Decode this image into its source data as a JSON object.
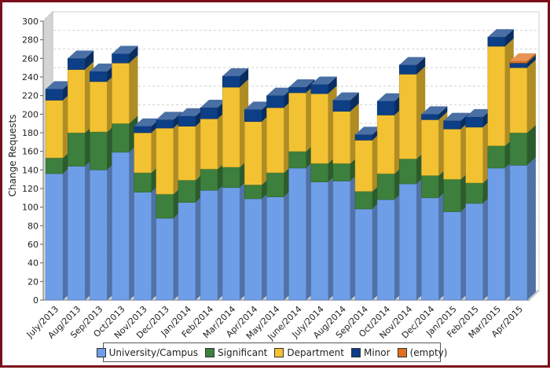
{
  "chart_data": {
    "type": "bar",
    "stacked": true,
    "ylabel": "Change Requests",
    "xlabel": "",
    "ylim": [
      0,
      300
    ],
    "yticks": [
      0,
      20,
      40,
      60,
      80,
      100,
      120,
      140,
      160,
      180,
      200,
      220,
      240,
      260,
      280,
      300
    ],
    "grid": true,
    "legend_position": "bottom",
    "categories": [
      "July/2013",
      "Aug/2013",
      "Sep/2013",
      "Oct/2013",
      "Nov/2013",
      "Dec/2013",
      "Jan/2014",
      "Feb/2014",
      "Mar/2014",
      "Apr/2014",
      "May/2014",
      "June/2014",
      "July/2014",
      "Aug/2014",
      "Sep/2014",
      "Oct/2014",
      "Nov/2014",
      "Dec/2014",
      "Jan/2015",
      "Feb/2015",
      "Mar/2015",
      "Apr/2015"
    ],
    "series": [
      {
        "name": "University/Campus",
        "color": "#6f9ee8",
        "values": [
          136,
          144,
          140,
          159,
          116,
          88,
          105,
          118,
          121,
          109,
          111,
          142,
          127,
          128,
          98,
          108,
          125,
          110,
          95,
          104,
          142,
          145
        ]
      },
      {
        "name": "Significant",
        "color": "#3d7f3d",
        "values": [
          17,
          36,
          41,
          31,
          21,
          26,
          24,
          23,
          22,
          15,
          26,
          18,
          20,
          19,
          19,
          28,
          27,
          24,
          35,
          22,
          24,
          35
        ]
      },
      {
        "name": "Department",
        "color": "#f3c232",
        "values": [
          62,
          68,
          54,
          65,
          43,
          71,
          58,
          54,
          86,
          68,
          70,
          63,
          75,
          56,
          55,
          63,
          91,
          60,
          54,
          60,
          107,
          70
        ]
      },
      {
        "name": "Minor",
        "color": "#0d3f86",
        "values": [
          12,
          12,
          11,
          10,
          7,
          9,
          11,
          12,
          12,
          13,
          13,
          6,
          10,
          12,
          6,
          15,
          10,
          6,
          9,
          11,
          10,
          5
        ]
      },
      {
        "name": "(empty)",
        "color": "#e0701f",
        "values": [
          0,
          0,
          0,
          0,
          0,
          0,
          0,
          0,
          0,
          0,
          0,
          0,
          0,
          0,
          0,
          0,
          0,
          0,
          0,
          0,
          0,
          2
        ]
      }
    ]
  }
}
